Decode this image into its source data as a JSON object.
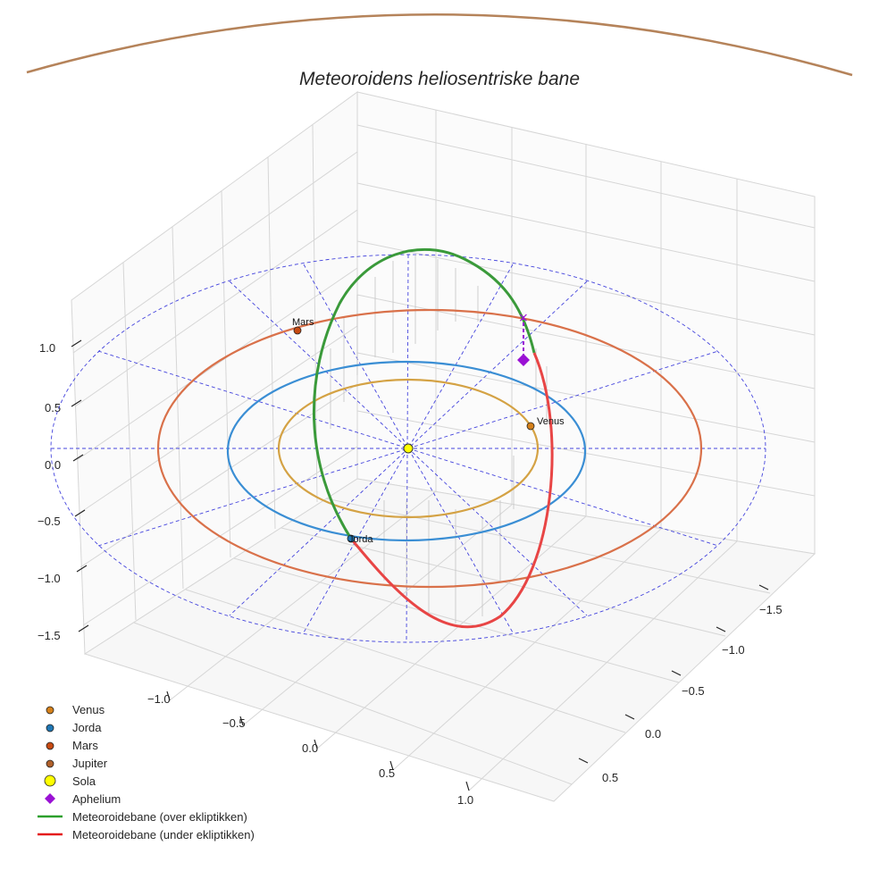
{
  "chart_data": {
    "type": "line",
    "projection": "3d",
    "title": "Meteoroidens heliosentriske bane",
    "axes": {
      "x_ticks": [
        "−1.0",
        "−0.5",
        "0.0",
        "0.5",
        "1.0"
      ],
      "y_ticks": [
        "−1.5",
        "−1.0",
        "−0.5",
        "0.0",
        "0.5"
      ],
      "z_ticks": [
        "1.0",
        "0.5",
        "0.0",
        "−0.5",
        "−1.0",
        "−1.5"
      ],
      "zlim": [
        -1.7,
        1.3
      ]
    },
    "planets": [
      {
        "name": "Venus",
        "label": "Venus",
        "orbit_radius": 0.72,
        "color": "#d4a244",
        "marker": "#d4801a"
      },
      {
        "name": "Jorda",
        "label": "Jorda",
        "orbit_radius": 1.0,
        "color": "#3a8ed4",
        "marker": "#1f77b4"
      },
      {
        "name": "Mars",
        "label": "Mars",
        "orbit_radius": 1.52,
        "color": "#d9714a",
        "marker": "#c74a12"
      },
      {
        "name": "Jupiter",
        "label": "",
        "orbit_radius": 5.2,
        "color": "#b5835a",
        "marker": "#b0602a"
      }
    ],
    "meteoroid_orbit": {
      "aphelium_distance": 1.6,
      "above_color": "#3a9a3a",
      "below_color": "#e84545"
    },
    "ecliptic_grid_color": "#4444dd",
    "sun_color": "#ffff00",
    "aphelium_color": "#9a11d4",
    "legend": [
      {
        "label": "Venus",
        "kind": "dot",
        "color": "#d4801a"
      },
      {
        "label": "Jorda",
        "kind": "dot",
        "color": "#1f77b4"
      },
      {
        "label": "Mars",
        "kind": "dot",
        "color": "#c74a12"
      },
      {
        "label": "Jupiter",
        "kind": "dot",
        "color": "#b0602a"
      },
      {
        "label": "Sola",
        "kind": "sun",
        "color": "#ffff00"
      },
      {
        "label": "Aphelium",
        "kind": "diamond",
        "color": "#9a11d4"
      },
      {
        "label": "Meteoroidebane (over ekliptikken)",
        "kind": "line",
        "color": "#2ca02c"
      },
      {
        "label": "Meteoroidebane (under ekliptikken)",
        "kind": "line",
        "color": "#e41a1c"
      }
    ]
  }
}
